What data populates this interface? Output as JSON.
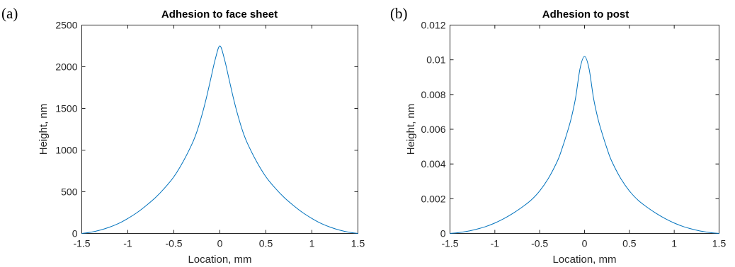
{
  "colors": {
    "series": "#0072BD",
    "axes": "#262626"
  },
  "chart_data": [
    {
      "type": "line",
      "panel_label": "(a)",
      "title": "Adhesion to face sheet",
      "xlabel": "Location, mm",
      "ylabel": "Height, nm",
      "xlim": [
        -1.5,
        1.5
      ],
      "ylim": [
        0,
        2500
      ],
      "xticks": [
        -1.5,
        -1,
        -0.5,
        0,
        0.5,
        1,
        1.5
      ],
      "xtick_labels": [
        "-1.5",
        "-1",
        "-0.5",
        "0",
        "0.5",
        "1",
        "1.5"
      ],
      "yticks": [
        0,
        500,
        1000,
        1500,
        2000,
        2500
      ],
      "ytick_labels": [
        "0",
        "500",
        "1000",
        "1500",
        "2000",
        "2500"
      ],
      "grid": false,
      "series": [
        {
          "x": [
            -1.5,
            -1.4,
            -1.3,
            -1.2,
            -1.1,
            -1.0,
            -0.9,
            -0.8,
            -0.7,
            -0.6,
            -0.5,
            -0.4,
            -0.3,
            -0.25,
            -0.2,
            -0.15,
            -0.1,
            -0.05,
            0,
            0.05,
            0.1,
            0.15,
            0.2,
            0.25,
            0.3,
            0.4,
            0.5,
            0.6,
            0.7,
            0.8,
            0.9,
            1.0,
            1.1,
            1.2,
            1.3,
            1.4,
            1.5
          ],
          "y": [
            0,
            15,
            40,
            75,
            120,
            180,
            250,
            335,
            430,
            545,
            680,
            860,
            1080,
            1220,
            1400,
            1610,
            1850,
            2090,
            2250,
            2090,
            1850,
            1610,
            1400,
            1220,
            1080,
            860,
            680,
            545,
            430,
            335,
            250,
            180,
            120,
            75,
            40,
            15,
            0
          ]
        }
      ]
    },
    {
      "type": "line",
      "panel_label": "(b)",
      "title": "Adhesion to post",
      "xlabel": "Location, mm",
      "ylabel": "Height, nm",
      "xlim": [
        -1.5,
        1.5
      ],
      "ylim": [
        0,
        0.012
      ],
      "xticks": [
        -1.5,
        -1,
        -0.5,
        0,
        0.5,
        1,
        1.5
      ],
      "xtick_labels": [
        "-1.5",
        "-1",
        "-0.5",
        "0",
        "0.5",
        "1",
        "1.5"
      ],
      "yticks": [
        0,
        0.002,
        0.004,
        0.006,
        0.008,
        0.01,
        0.012
      ],
      "ytick_labels": [
        "0",
        "0.002",
        "0.004",
        "0.006",
        "0.008",
        "0.01",
        "0.012"
      ],
      "grid": false,
      "series": [
        {
          "x": [
            -1.5,
            -1.4,
            -1.3,
            -1.2,
            -1.1,
            -1.0,
            -0.9,
            -0.8,
            -0.7,
            -0.6,
            -0.5,
            -0.4,
            -0.3,
            -0.25,
            -0.2,
            -0.15,
            -0.1,
            -0.05,
            0,
            0.05,
            0.1,
            0.15,
            0.2,
            0.25,
            0.3,
            0.4,
            0.5,
            0.6,
            0.7,
            0.8,
            0.9,
            1.0,
            1.1,
            1.2,
            1.3,
            1.4,
            1.5
          ],
          "y": [
            0,
            5e-05,
            0.00013,
            0.00025,
            0.0004,
            0.0006,
            0.00085,
            0.00115,
            0.0015,
            0.0019,
            0.00245,
            0.0032,
            0.0042,
            0.0049,
            0.0057,
            0.0066,
            0.0078,
            0.0095,
            0.0102,
            0.0095,
            0.0078,
            0.0066,
            0.0057,
            0.0049,
            0.0042,
            0.0032,
            0.00245,
            0.0019,
            0.0015,
            0.00115,
            0.00085,
            0.0006,
            0.0004,
            0.00025,
            0.00013,
            5e-05,
            0
          ]
        }
      ]
    }
  ]
}
